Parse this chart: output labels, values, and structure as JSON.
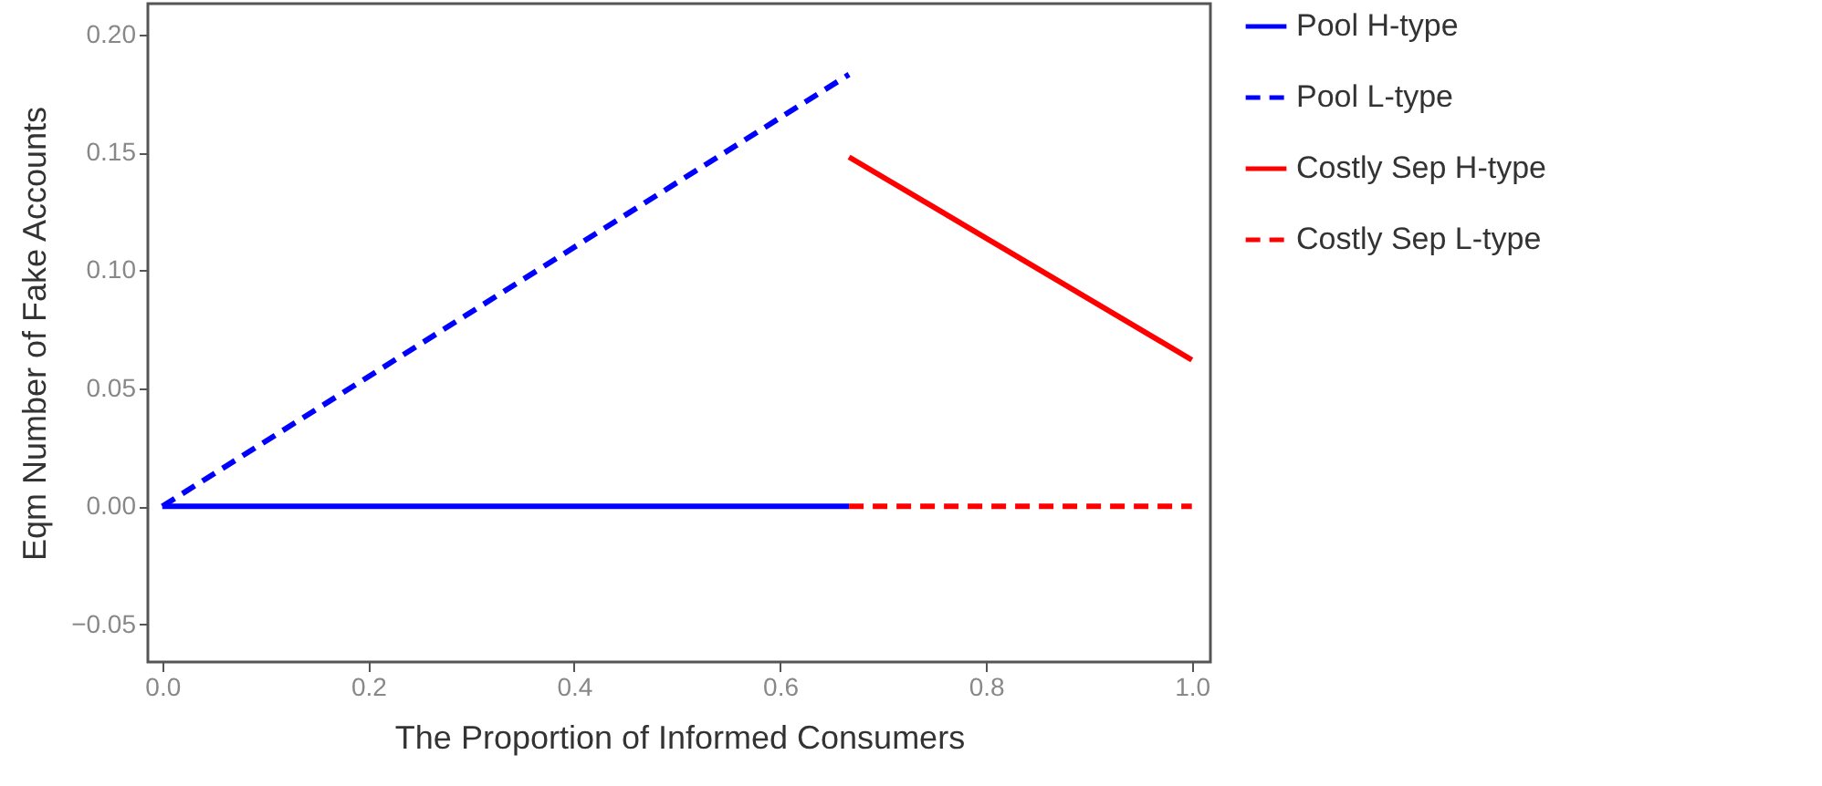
{
  "chart_data": {
    "type": "line",
    "xlabel": "The Proportion of Informed Consumers",
    "ylabel": "Eqm Number of Fake Accounts",
    "xlim": [
      -0.014,
      1.018
    ],
    "ylim": [
      -0.066,
      0.213
    ],
    "xticks": [
      {
        "value": 0,
        "label": "0.0"
      },
      {
        "value": 0.2,
        "label": "0.2"
      },
      {
        "value": 0.4,
        "label": "0.4"
      },
      {
        "value": 0.6,
        "label": "0.6"
      },
      {
        "value": 0.8,
        "label": "0.8"
      },
      {
        "value": 1,
        "label": "1.0"
      }
    ],
    "yticks": [
      {
        "value": -0.05,
        "label": "−0.05"
      },
      {
        "value": 0,
        "label": "0.00"
      },
      {
        "value": 0.05,
        "label": "0.05"
      },
      {
        "value": 0.1,
        "label": "0.10"
      },
      {
        "value": 0.15,
        "label": "0.15"
      },
      {
        "value": 0.2,
        "label": "0.20"
      }
    ],
    "grid": false,
    "legend": "right",
    "series": [
      {
        "name": "Pool H-type",
        "color": "#0000ff",
        "line_style": "solid",
        "x": [
          0,
          0.667
        ],
        "values": [
          0,
          0
        ]
      },
      {
        "name": "Pool L-type",
        "color": "#0000ff",
        "line_style": "dashed",
        "x": [
          0,
          0.667
        ],
        "values": [
          0,
          0.183
        ]
      },
      {
        "name": "Costly Sep H-type",
        "color": "#ff0000",
        "line_style": "solid",
        "x": [
          0.667,
          1
        ],
        "values": [
          0.148,
          0.062
        ]
      },
      {
        "name": "Costly Sep L-type",
        "color": "#ff0000",
        "line_style": "dashed",
        "x": [
          0.667,
          1
        ],
        "values": [
          0,
          0
        ]
      }
    ]
  }
}
